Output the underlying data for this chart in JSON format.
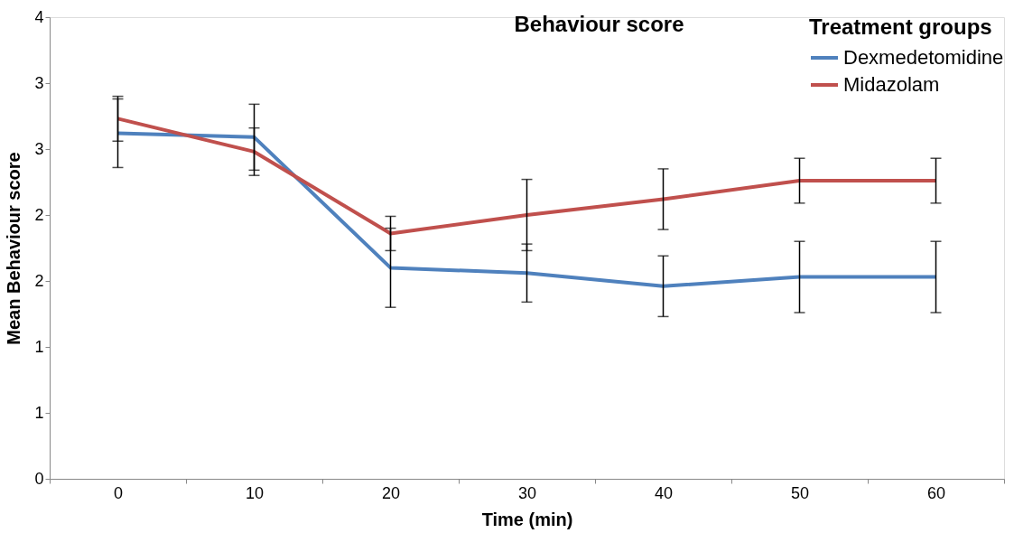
{
  "chart_data": {
    "type": "line",
    "title": "Behaviour score",
    "xlabel": "Time (min)",
    "ylabel": "Mean Behaviour score",
    "legend_title": "Treatment groups",
    "categories": [
      "0",
      "10",
      "20",
      "30",
      "40",
      "50",
      "60"
    ],
    "series": [
      {
        "name": "Dexmedetomidine",
        "color": "#4f81bd",
        "values": [
          2.62,
          2.59,
          1.6,
          1.56,
          1.46,
          1.53,
          1.53
        ],
        "errors": [
          0.26,
          0.25,
          0.3,
          0.22,
          0.23,
          0.27,
          0.27
        ]
      },
      {
        "name": "Midazolam",
        "color": "#c0504d",
        "values": [
          2.73,
          2.48,
          1.86,
          2.0,
          2.12,
          2.26,
          2.26
        ],
        "errors": [
          0.17,
          0.18,
          0.13,
          0.27,
          0.23,
          0.17,
          0.17
        ]
      }
    ],
    "ylim": [
      0,
      3.5
    ],
    "yticks": [
      0,
      {
        "value": 0.5,
        "label": "1"
      },
      1,
      {
        "value": 1.5,
        "label": "2"
      },
      2,
      {
        "value": 2.5,
        "label": "3"
      },
      3,
      {
        "value": 3.5,
        "label": "4"
      }
    ],
    "grid": false,
    "legend": "top right",
    "marker": "none",
    "line_style": "solid"
  }
}
